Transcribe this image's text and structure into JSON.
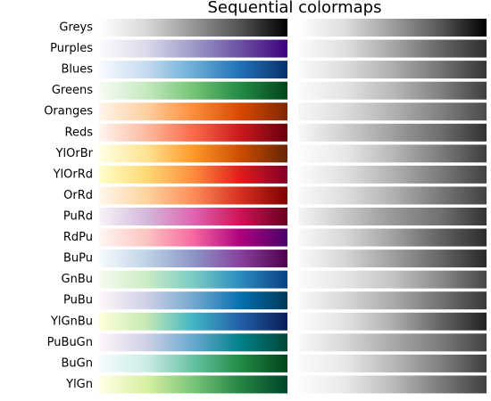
{
  "title": "Sequential colormaps",
  "colormaps": [
    {
      "name": "Greys",
      "colors": [
        "#ffffff",
        "#d9d9d9",
        "#969696",
        "#525252",
        "#000000"
      ]
    },
    {
      "name": "Purples",
      "colors": [
        "#fcfbfd",
        "#dadaeb",
        "#9e9ac8",
        "#6a51a3",
        "#3f007d"
      ]
    },
    {
      "name": "Blues",
      "colors": [
        "#f7fbff",
        "#c6dbef",
        "#6baed6",
        "#2171b5",
        "#08306b"
      ]
    },
    {
      "name": "Greens",
      "colors": [
        "#f7fcf5",
        "#c7e9c0",
        "#74c476",
        "#238b45",
        "#00441b"
      ]
    },
    {
      "name": "Oranges",
      "colors": [
        "#fff5eb",
        "#fdd0a2",
        "#fd8d3c",
        "#d94801",
        "#7f2704"
      ]
    },
    {
      "name": "Reds",
      "colors": [
        "#fff5f0",
        "#fcbba1",
        "#fb6a4a",
        "#cb181d",
        "#67000d"
      ]
    },
    {
      "name": "YlOrBr",
      "colors": [
        "#ffffe5",
        "#fee391",
        "#fe9929",
        "#cc4c02",
        "#662506"
      ]
    },
    {
      "name": "YlOrRd",
      "colors": [
        "#ffffcc",
        "#fed976",
        "#fd8d3c",
        "#e31a1c",
        "#800026"
      ]
    },
    {
      "name": "OrRd",
      "colors": [
        "#fff7ec",
        "#fdd49e",
        "#fc8d59",
        "#d7301f",
        "#7f0000"
      ]
    },
    {
      "name": "PuRd",
      "colors": [
        "#f7f4f9",
        "#d4b9da",
        "#df65b0",
        "#ce1256",
        "#67001f"
      ]
    },
    {
      "name": "RdPu",
      "colors": [
        "#fff7f3",
        "#fcc5c0",
        "#f768a1",
        "#ae017e",
        "#49006a"
      ]
    },
    {
      "name": "BuPu",
      "colors": [
        "#f7fcfd",
        "#bfd3e6",
        "#8c96c6",
        "#88419d",
        "#4d004b"
      ]
    },
    {
      "name": "GnBu",
      "colors": [
        "#f7fcf0",
        "#ccebc5",
        "#7bccc4",
        "#2b8cbe",
        "#084081"
      ]
    },
    {
      "name": "PuBu",
      "colors": [
        "#fff7fb",
        "#d0d1e6",
        "#74a9cf",
        "#0570b0",
        "#023858"
      ]
    },
    {
      "name": "YlGnBu",
      "colors": [
        "#ffffd9",
        "#c7e9b4",
        "#41b6c4",
        "#225ea8",
        "#081d58"
      ]
    },
    {
      "name": "PuBuGn",
      "colors": [
        "#fff7fb",
        "#d0d1e6",
        "#67a9cf",
        "#02818a",
        "#014636"
      ]
    },
    {
      "name": "BuGn",
      "colors": [
        "#f7fcfd",
        "#ccece6",
        "#66c2a4",
        "#238b45",
        "#00441b"
      ]
    },
    {
      "name": "YlGn",
      "colors": [
        "#ffffe5",
        "#d9f0a3",
        "#78c679",
        "#238443",
        "#004529"
      ]
    }
  ]
}
